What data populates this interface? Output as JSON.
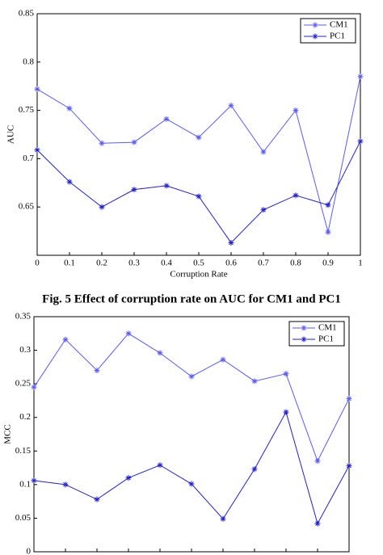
{
  "caption": "Fig. 5 Effect of corruption rate on AUC for CM1 and PC1",
  "chart_data": [
    {
      "type": "line",
      "xlabel": "Corruption Rate",
      "ylabel": "AUC",
      "x": [
        0,
        0.1,
        0.2,
        0.3,
        0.4,
        0.5,
        0.6,
        0.7,
        0.8,
        0.9,
        1
      ],
      "series": [
        {
          "name": "CM1",
          "color": "#5a5aff",
          "values": [
            0.772,
            0.752,
            0.716,
            0.717,
            0.741,
            0.722,
            0.755,
            0.707,
            0.75,
            0.624,
            0.785
          ]
        },
        {
          "name": "PC1",
          "color": "#2020d0",
          "values": [
            0.709,
            0.676,
            0.65,
            0.668,
            0.672,
            0.661,
            0.613,
            0.647,
            0.662,
            0.652,
            0.718
          ]
        }
      ],
      "xlim": [
        0,
        1
      ],
      "xticks": [
        0,
        0.1,
        0.2,
        0.3,
        0.4,
        0.5,
        0.6,
        0.7,
        0.8,
        0.9,
        1
      ],
      "show_xtick_labels": true,
      "ylim": [
        0.6,
        0.85
      ],
      "yticks": [
        0.65,
        0.7,
        0.75,
        0.8,
        0.85
      ],
      "legend": "upper right"
    },
    {
      "type": "line",
      "ylabel": "MCC",
      "x": [
        0,
        0.1,
        0.2,
        0.3,
        0.4,
        0.5,
        0.6,
        0.7,
        0.8,
        0.9,
        1
      ],
      "series": [
        {
          "name": "CM1",
          "color": "#5a5aff",
          "values": [
            0.245,
            0.316,
            0.27,
            0.325,
            0.296,
            0.261,
            0.286,
            0.254,
            0.265,
            0.135,
            0.228
          ]
        },
        {
          "name": "PC1",
          "color": "#2020d0",
          "values": [
            0.106,
            0.1,
            0.078,
            0.11,
            0.129,
            0.101,
            0.049,
            0.123,
            0.208,
            0.042,
            0.128
          ]
        }
      ],
      "xlim": [
        0,
        1
      ],
      "xticks": [
        0,
        0.1,
        0.2,
        0.3,
        0.4,
        0.5,
        0.6,
        0.7,
        0.8,
        0.9,
        1
      ],
      "show_xtick_labels": false,
      "ylim": [
        0,
        0.35
      ],
      "yticks": [
        0,
        0.05,
        0.1,
        0.15,
        0.2,
        0.25,
        0.3,
        0.35
      ],
      "legend": "upper right"
    }
  ]
}
